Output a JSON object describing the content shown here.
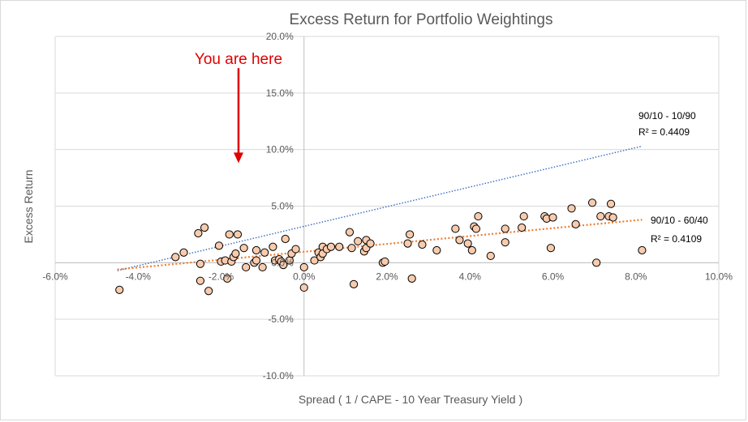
{
  "chart_data": {
    "type": "scatter",
    "title": "Excess Return for Portfolio Weightings",
    "xlabel": "Spread ( 1 / CAPE - 10 Year Treasury Yield )",
    "ylabel": "Excess Return",
    "xlim": [
      -0.06,
      0.1
    ],
    "ylim": [
      -0.1,
      0.2
    ],
    "xticks": [
      -0.06,
      -0.04,
      -0.02,
      0.0,
      0.02,
      0.04,
      0.06,
      0.08,
      0.1
    ],
    "yticks": [
      -0.1,
      -0.05,
      0.0,
      0.05,
      0.1,
      0.15,
      0.2
    ],
    "xtick_labels": [
      "-6.0%",
      "-4.0%",
      "-2.0%",
      "0.0%",
      "2.0%",
      "4.0%",
      "6.0%",
      "8.0%",
      "10.0%"
    ],
    "ytick_labels": [
      "-10.0%",
      "-5.0%",
      "0.0%",
      "5.0%",
      "10.0%",
      "15.0%",
      "20.0%"
    ],
    "grid": true,
    "marker_fill": "#f8cbad",
    "marker_edge": "#000000",
    "points": [
      [
        -0.0445,
        -0.024
      ],
      [
        -0.031,
        0.005
      ],
      [
        -0.029,
        0.009
      ],
      [
        -0.0255,
        0.026
      ],
      [
        -0.025,
        -0.001
      ],
      [
        -0.025,
        -0.016
      ],
      [
        -0.024,
        0.031
      ],
      [
        -0.023,
        -0.025
      ],
      [
        -0.0205,
        0.015
      ],
      [
        -0.02,
        0.001
      ],
      [
        -0.019,
        0.002
      ],
      [
        -0.0185,
        -0.014
      ],
      [
        -0.018,
        0.025
      ],
      [
        -0.0175,
        0.001
      ],
      [
        -0.017,
        0.005
      ],
      [
        -0.0165,
        0.008
      ],
      [
        -0.016,
        0.025
      ],
      [
        -0.0145,
        0.013
      ],
      [
        -0.014,
        -0.004
      ],
      [
        -0.012,
        0.0
      ],
      [
        -0.0115,
        0.002
      ],
      [
        -0.0115,
        0.011
      ],
      [
        -0.01,
        -0.004
      ],
      [
        -0.0095,
        0.009
      ],
      [
        -0.0075,
        0.014
      ],
      [
        -0.007,
        0.002
      ],
      [
        -0.006,
        0.003
      ],
      [
        -0.0055,
        0.001
      ],
      [
        -0.005,
        -0.002
      ],
      [
        -0.0045,
        0.021
      ],
      [
        -0.0035,
        0.002
      ],
      [
        -0.003,
        0.008
      ],
      [
        -0.002,
        0.012
      ],
      [
        0.0,
        -0.004
      ],
      [
        0.0,
        -0.022
      ],
      [
        0.0025,
        0.002
      ],
      [
        0.0035,
        0.009
      ],
      [
        0.004,
        0.005
      ],
      [
        0.0045,
        0.014
      ],
      [
        0.0045,
        0.008
      ],
      [
        0.0055,
        0.012
      ],
      [
        0.0065,
        0.014
      ],
      [
        0.0085,
        0.014
      ],
      [
        0.011,
        0.027
      ],
      [
        0.0115,
        0.013
      ],
      [
        0.012,
        -0.019
      ],
      [
        0.013,
        0.019
      ],
      [
        0.0145,
        0.01
      ],
      [
        0.015,
        0.013
      ],
      [
        0.015,
        0.02
      ],
      [
        0.016,
        0.017
      ],
      [
        0.019,
        0.0
      ],
      [
        0.0195,
        0.001
      ],
      [
        0.025,
        0.017
      ],
      [
        0.0255,
        0.025
      ],
      [
        0.026,
        -0.014
      ],
      [
        0.0285,
        0.016
      ],
      [
        0.032,
        0.011
      ],
      [
        0.0365,
        0.03
      ],
      [
        0.0375,
        0.02
      ],
      [
        0.0395,
        0.017
      ],
      [
        0.0405,
        0.011
      ],
      [
        0.041,
        0.032
      ],
      [
        0.0415,
        0.03
      ],
      [
        0.042,
        0.041
      ],
      [
        0.045,
        0.006
      ],
      [
        0.0485,
        0.03
      ],
      [
        0.0485,
        0.018
      ],
      [
        0.0525,
        0.031
      ],
      [
        0.053,
        0.041
      ],
      [
        0.058,
        0.041
      ],
      [
        0.0585,
        0.039
      ],
      [
        0.0595,
        0.013
      ],
      [
        0.06,
        0.04
      ],
      [
        0.0645,
        0.048
      ],
      [
        0.0655,
        0.034
      ],
      [
        0.0695,
        0.053
      ],
      [
        0.0705,
        0.0
      ],
      [
        0.0715,
        0.041
      ],
      [
        0.0735,
        0.041
      ],
      [
        0.074,
        0.052
      ],
      [
        0.0745,
        0.04
      ],
      [
        0.0815,
        0.011
      ]
    ],
    "trendlines": [
      {
        "name": "90/10 - 10/90",
        "r2": "R² = 0.4409",
        "x": [
          -0.045,
          0.0815
        ],
        "y": [
          -0.007,
          0.103
        ],
        "color": "#4472c4"
      },
      {
        "name": "90/10 - 60/40",
        "r2": "R² = 0.4109",
        "x": [
          -0.045,
          0.0815
        ],
        "y": [
          -0.006,
          0.038
        ],
        "color": "#ed7d31"
      }
    ],
    "annotation": {
      "text": "You are here",
      "x": -0.0158,
      "y_from": 0.172,
      "y_to": 0.088,
      "color": "#e00000"
    }
  }
}
